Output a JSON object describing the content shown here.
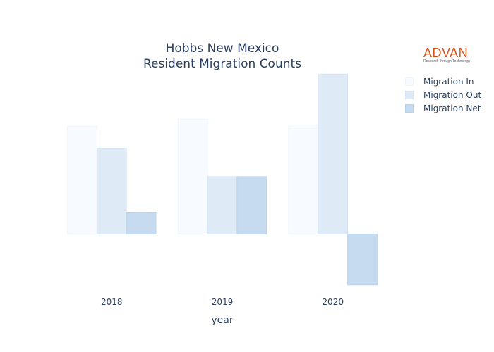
{
  "chart_data": {
    "type": "bar",
    "title_lines": [
      "Hobbs New Mexico",
      "Resident Migration Counts"
    ],
    "xlabel": "year",
    "ylabel": "",
    "categories": [
      "2018",
      "2019",
      "2020"
    ],
    "series": [
      {
        "name": "Migration In",
        "values": [
          148,
          158,
          150
        ],
        "color": "#f7fbff",
        "border": "#eef4fb"
      },
      {
        "name": "Migration Out",
        "values": [
          118,
          79,
          220
        ],
        "color": "#deebf7",
        "border": "#d4e4f4"
      },
      {
        "name": "Migration Net",
        "values": [
          30,
          79,
          -70
        ],
        "color": "#c6dbef",
        "border": "#bcd3ea"
      }
    ],
    "ylim": [
      -75,
      225
    ],
    "grid": false,
    "legend_position": "top-right"
  },
  "logo": {
    "word": "ADVAN",
    "tagline": "Research through Technology"
  }
}
